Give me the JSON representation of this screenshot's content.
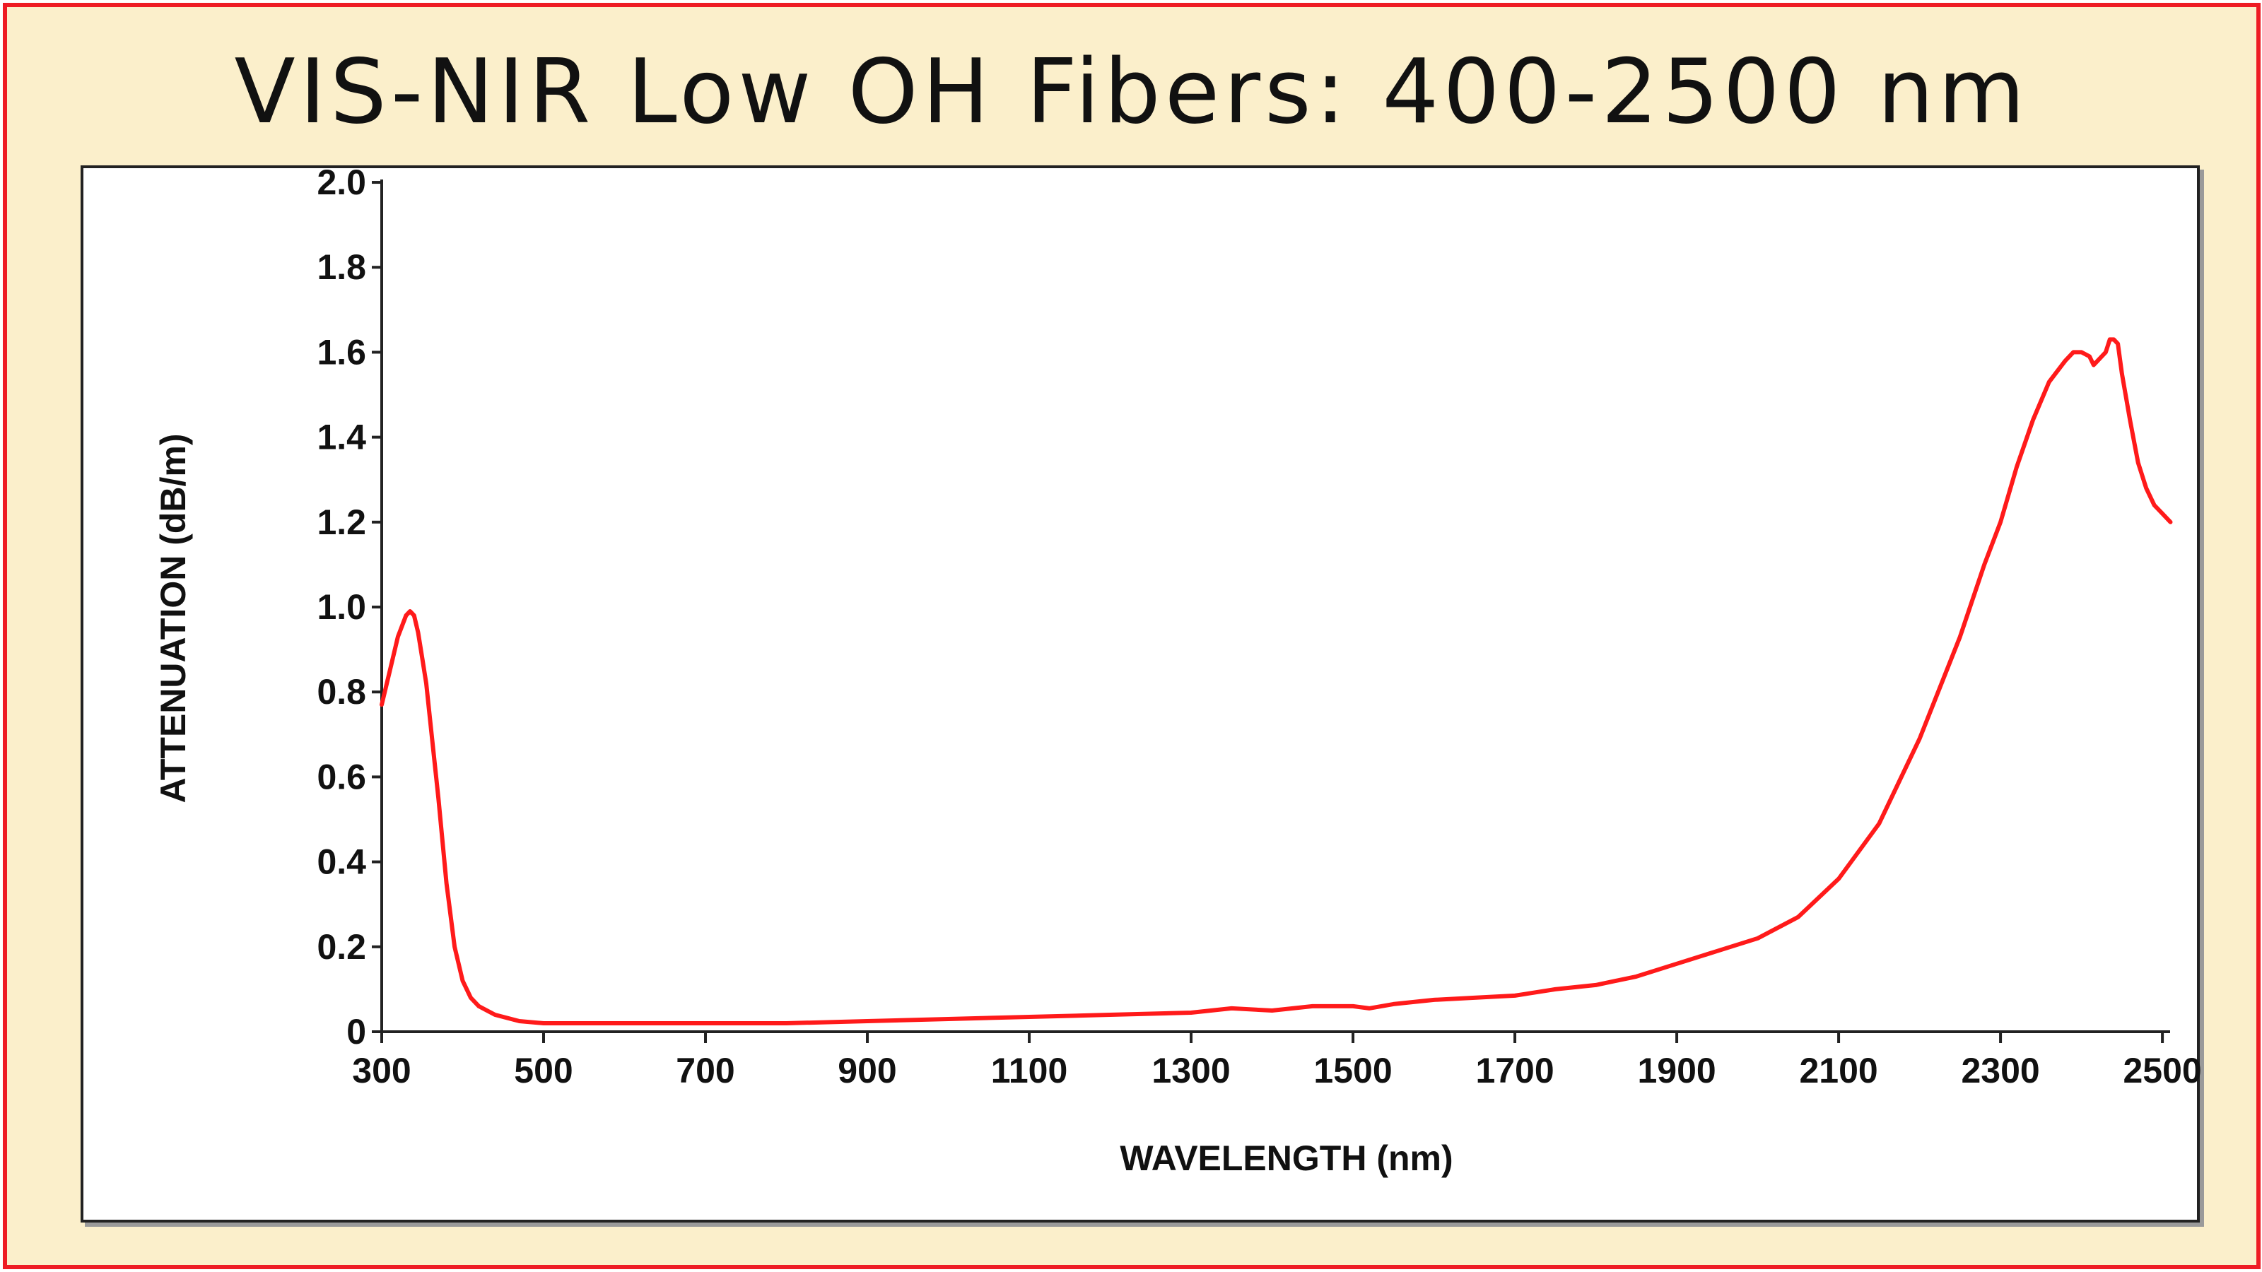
{
  "title": "VIS-NIR Low OH Fibers: 400-2500 nm",
  "colors": {
    "frame_border": "#ee1c24",
    "background": "#fbefcb",
    "plot_background": "#ffffff",
    "series": "#ff1a1a",
    "axis": "#222222"
  },
  "chart_data": {
    "type": "line",
    "title": "VIS-NIR Low OH Fibers: 400-2500 nm",
    "xlabel": "WAVELENGTH (nm)",
    "ylabel": "ATTENUATION (dB/m)",
    "xlim": [
      300,
      2520
    ],
    "ylim": [
      0,
      2.05
    ],
    "xticks": [
      300,
      500,
      700,
      900,
      1100,
      1300,
      1500,
      1700,
      1900,
      2100,
      2300,
      2500
    ],
    "xtick_labels": [
      "300",
      "500",
      "700",
      "900",
      "1100",
      "1300",
      "1500",
      "1700",
      "1900",
      "2100",
      "2300",
      "2500"
    ],
    "yticks": [
      0,
      0.2,
      0.4,
      0.6,
      0.8,
      1.0,
      1.2,
      1.4,
      1.6,
      1.8,
      2.0
    ],
    "ytick_labels": [
      "0",
      "0.2",
      "0.4",
      "0.6",
      "0.8",
      "1.0",
      "1.2",
      "1.4",
      "1.6",
      "1.8",
      "2.0"
    ],
    "grid": false,
    "series": [
      {
        "name": "Attenuation",
        "color": "#ff1a1a",
        "x": [
          300,
          310,
          320,
          330,
          335,
          340,
          345,
          350,
          355,
          360,
          370,
          380,
          390,
          400,
          410,
          420,
          430,
          440,
          450,
          470,
          500,
          550,
          600,
          700,
          800,
          900,
          1000,
          1100,
          1200,
          1300,
          1350,
          1400,
          1450,
          1500,
          1520,
          1550,
          1600,
          1650,
          1700,
          1750,
          1800,
          1850,
          1900,
          1950,
          2000,
          2050,
          2100,
          2150,
          2200,
          2250,
          2280,
          2300,
          2320,
          2340,
          2360,
          2380,
          2390,
          2400,
          2410,
          2415,
          2420,
          2430,
          2435,
          2440,
          2445,
          2450,
          2460,
          2470,
          2480,
          2490,
          2500,
          2510
        ],
        "y": [
          0.77,
          0.85,
          0.93,
          0.98,
          0.99,
          0.98,
          0.94,
          0.88,
          0.82,
          0.73,
          0.55,
          0.35,
          0.2,
          0.12,
          0.08,
          0.06,
          0.05,
          0.04,
          0.035,
          0.025,
          0.02,
          0.02,
          0.02,
          0.02,
          0.02,
          0.025,
          0.03,
          0.035,
          0.04,
          0.045,
          0.055,
          0.05,
          0.06,
          0.06,
          0.055,
          0.065,
          0.075,
          0.08,
          0.085,
          0.1,
          0.11,
          0.13,
          0.16,
          0.19,
          0.22,
          0.27,
          0.36,
          0.49,
          0.69,
          0.93,
          1.1,
          1.2,
          1.33,
          1.44,
          1.53,
          1.58,
          1.6,
          1.6,
          1.59,
          1.57,
          1.58,
          1.6,
          1.63,
          1.63,
          1.62,
          1.55,
          1.44,
          1.34,
          1.28,
          1.24,
          1.22,
          1.2
        ]
      }
    ]
  }
}
